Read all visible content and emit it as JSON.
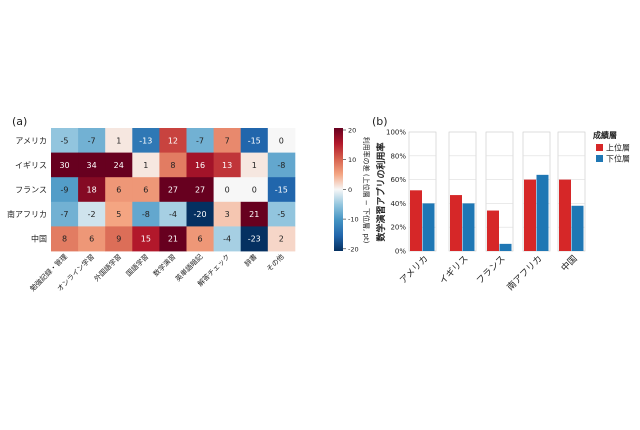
{
  "chart_data": [
    {
      "type": "heatmap",
      "panel_label": "(a)",
      "rows": [
        "アメリカ",
        "イギリス",
        "フランス",
        "南アフリカ",
        "中国"
      ],
      "columns": [
        "勉強記録・管理",
        "オンライン学習",
        "外国語学習",
        "国語学習",
        "数学演習",
        "英単語暗記",
        "解答チェック",
        "辞書",
        "その他"
      ],
      "values": [
        [
          -5,
          -7,
          1,
          -13,
          12,
          -7,
          7,
          -15,
          0
        ],
        [
          30,
          34,
          24,
          1,
          8,
          16,
          13,
          1,
          -8
        ],
        [
          -9,
          18,
          6,
          6,
          27,
          27,
          0,
          0,
          -15
        ],
        [
          -7,
          -2,
          5,
          -8,
          -4,
          -20,
          3,
          21,
          -5
        ],
        [
          8,
          6,
          9,
          15,
          21,
          6,
          -4,
          -23,
          2
        ]
      ],
      "colorbar": {
        "label": "利用率の差 (上位層 − 下位層, pt)",
        "min": -20,
        "max": 20,
        "ticks": [
          "20",
          "10",
          "0",
          "-10",
          "-20"
        ]
      }
    },
    {
      "type": "bar",
      "panel_label": "(b)",
      "categories": [
        "アメリカ",
        "イギリス",
        "フランス",
        "南アフリカ",
        "中国"
      ],
      "series": [
        {
          "name": "上位層",
          "color": "#d62728",
          "values": [
            51,
            47,
            34,
            60,
            60
          ]
        },
        {
          "name": "下位層",
          "color": "#1f77b4",
          "values": [
            40,
            40,
            6,
            64,
            38
          ]
        }
      ],
      "ylabel": "数学演習アプリの利用率",
      "ylim": [
        0,
        100
      ],
      "yticks": [
        "0%",
        "20%",
        "40%",
        "60%",
        "80%",
        "100%"
      ],
      "legend_title": "成績層"
    }
  ]
}
